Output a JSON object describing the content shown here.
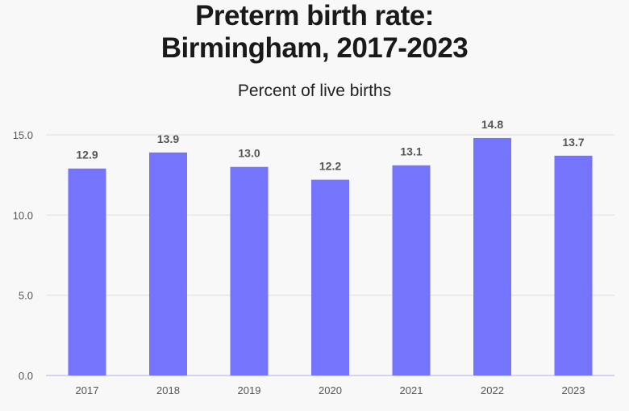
{
  "chart_data": {
    "type": "bar",
    "title_line1": "Preterm birth rate:",
    "title_line2": "Birmingham, 2017-2023",
    "subtitle": "Percent of live births",
    "categories": [
      "2017",
      "2018",
      "2019",
      "2020",
      "2021",
      "2022",
      "2023"
    ],
    "values": [
      12.9,
      13.9,
      13.0,
      12.2,
      13.1,
      14.8,
      13.7
    ],
    "value_labels": [
      "12.9",
      "13.9",
      "13.0",
      "12.2",
      "13.1",
      "14.8",
      "13.7"
    ],
    "yticks": [
      0,
      5,
      10,
      15
    ],
    "ytick_labels": [
      "0.0",
      "5.0",
      "10.0",
      "15.0"
    ],
    "ylim": [
      0,
      15
    ],
    "grid": true,
    "bar_color": "#7474fc"
  }
}
